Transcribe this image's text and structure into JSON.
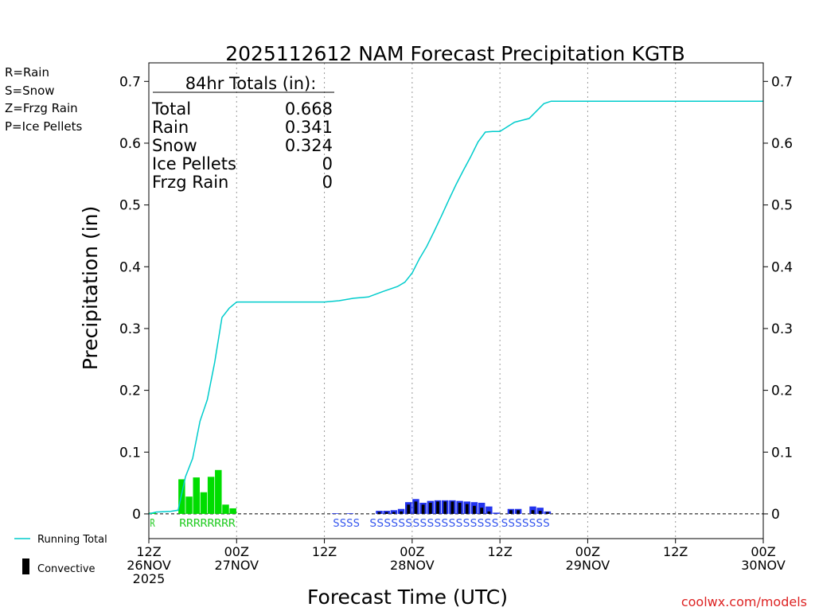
{
  "chart_data": {
    "type": "bar",
    "title": "2025112612 NAM Forecast Precipitation KGTB",
    "xlabel": "Forecast Time (UTC)",
    "ylabel": "Precipitation (in)",
    "ylim": [
      -0.04,
      0.73
    ],
    "xlim_hours": [
      0,
      84
    ],
    "y_ticks": [
      0,
      0.1,
      0.2,
      0.3,
      0.4,
      0.5,
      0.6,
      0.7
    ],
    "x_ticks": [
      {
        "hour": 0,
        "lines": [
          "12Z",
          "26NOV",
          "2025"
        ]
      },
      {
        "hour": 12,
        "lines": [
          "00Z",
          "27NOV"
        ]
      },
      {
        "hour": 24,
        "lines": [
          "12Z"
        ]
      },
      {
        "hour": 36,
        "lines": [
          "00Z",
          "28NOV"
        ]
      },
      {
        "hour": 48,
        "lines": [
          "12Z"
        ]
      },
      {
        "hour": 60,
        "lines": [
          "00Z",
          "29NOV"
        ]
      },
      {
        "hour": 72,
        "lines": [
          "12Z"
        ]
      },
      {
        "hour": 84,
        "lines": [
          "00Z",
          "30NOV"
        ]
      }
    ],
    "totals_box": {
      "header": "84hr Totals (in):",
      "rows": [
        {
          "label": "Total",
          "value": "0.668"
        },
        {
          "label": "Rain",
          "value": "0.341"
        },
        {
          "label": "Snow",
          "value": "0.324"
        },
        {
          "label": "Ice Pellets",
          "value": "0"
        },
        {
          "label": "Frzg Rain",
          "value": "0"
        }
      ]
    },
    "precip_type_legend": [
      {
        "text": "R=Rain",
        "color": "#22cc22"
      },
      {
        "text": "S=Snow",
        "color": "#3355ee"
      },
      {
        "text": "Z=Frzg Rain",
        "color": "#ee8833"
      },
      {
        "text": "P=Ice Pellets",
        "color": "#ee2288"
      }
    ],
    "series_legend": {
      "running_total": "Running Total",
      "convective": "Convective"
    },
    "colors": {
      "rain": "#00dd00",
      "snow": "#2233ee",
      "convective": "#000000",
      "running_total": "#00cccc",
      "rain_label": "#22cc22",
      "snow_label": "#3355ee",
      "credit": "#dd2222"
    },
    "running_total": [
      [
        0,
        0
      ],
      [
        1,
        0.003
      ],
      [
        3,
        0.004
      ],
      [
        4,
        0.006
      ],
      [
        5,
        0.06
      ],
      [
        6,
        0.09
      ],
      [
        7,
        0.15
      ],
      [
        8,
        0.185
      ],
      [
        9,
        0.245
      ],
      [
        10,
        0.318
      ],
      [
        11,
        0.333
      ],
      [
        12,
        0.343
      ],
      [
        13,
        0.343
      ],
      [
        24,
        0.343
      ],
      [
        26,
        0.345
      ],
      [
        28,
        0.349
      ],
      [
        30,
        0.351
      ],
      [
        32,
        0.36
      ],
      [
        34,
        0.368
      ],
      [
        35,
        0.375
      ],
      [
        36,
        0.39
      ],
      [
        37,
        0.413
      ],
      [
        38,
        0.433
      ],
      [
        39,
        0.457
      ],
      [
        40,
        0.482
      ],
      [
        41,
        0.508
      ],
      [
        42,
        0.533
      ],
      [
        43,
        0.556
      ],
      [
        44,
        0.578
      ],
      [
        45,
        0.602
      ],
      [
        46,
        0.618
      ],
      [
        47,
        0.619
      ],
      [
        48,
        0.619
      ],
      [
        50,
        0.634
      ],
      [
        52,
        0.64
      ],
      [
        54,
        0.664
      ],
      [
        55,
        0.668
      ],
      [
        84,
        0.668
      ]
    ],
    "bars": [
      {
        "h": 1,
        "type": "rain",
        "total": 0.002,
        "conv": 0
      },
      {
        "h": 5,
        "type": "rain",
        "total": 0.056,
        "conv": 0
      },
      {
        "h": 6,
        "type": "rain",
        "total": 0.028,
        "conv": 0
      },
      {
        "h": 7,
        "type": "rain",
        "total": 0.059,
        "conv": 0
      },
      {
        "h": 8,
        "type": "rain",
        "total": 0.035,
        "conv": 0
      },
      {
        "h": 9,
        "type": "rain",
        "total": 0.06,
        "conv": 0
      },
      {
        "h": 10,
        "type": "rain",
        "total": 0.071,
        "conv": 0
      },
      {
        "h": 11,
        "type": "rain",
        "total": 0.015,
        "conv": 0
      },
      {
        "h": 12,
        "type": "rain",
        "total": 0.009,
        "conv": 0
      },
      {
        "h": 26,
        "type": "snow",
        "total": 0.001,
        "conv": 0
      },
      {
        "h": 28,
        "type": "snow",
        "total": 0.001,
        "conv": 0
      },
      {
        "h": 32,
        "type": "snow",
        "total": 0.005,
        "conv": 0.003
      },
      {
        "h": 33,
        "type": "snow",
        "total": 0.005,
        "conv": 0.003
      },
      {
        "h": 34,
        "type": "snow",
        "total": 0.006,
        "conv": 0.003
      },
      {
        "h": 35,
        "type": "snow",
        "total": 0.008,
        "conv": 0.004
      },
      {
        "h": 36,
        "type": "snow",
        "total": 0.019,
        "conv": 0.015
      },
      {
        "h": 37,
        "type": "snow",
        "total": 0.024,
        "conv": 0.02
      },
      {
        "h": 38,
        "type": "snow",
        "total": 0.018,
        "conv": 0.015
      },
      {
        "h": 39,
        "type": "snow",
        "total": 0.021,
        "conv": 0.018
      },
      {
        "h": 40,
        "type": "snow",
        "total": 0.022,
        "conv": 0.02
      },
      {
        "h": 41,
        "type": "snow",
        "total": 0.022,
        "conv": 0.02
      },
      {
        "h": 42,
        "type": "snow",
        "total": 0.022,
        "conv": 0.02
      },
      {
        "h": 43,
        "type": "snow",
        "total": 0.021,
        "conv": 0.018
      },
      {
        "h": 44,
        "type": "snow",
        "total": 0.02,
        "conv": 0.016
      },
      {
        "h": 45,
        "type": "snow",
        "total": 0.019,
        "conv": 0.013
      },
      {
        "h": 46,
        "type": "snow",
        "total": 0.018,
        "conv": 0.01
      },
      {
        "h": 47,
        "type": "snow",
        "total": 0.012,
        "conv": 0.004
      },
      {
        "h": 48,
        "type": "snow",
        "total": 0.002,
        "conv": 0
      },
      {
        "h": 50,
        "type": "snow",
        "total": 0.008,
        "conv": 0.006
      },
      {
        "h": 51,
        "type": "snow",
        "total": 0.008,
        "conv": 0.006
      },
      {
        "h": 53,
        "type": "snow",
        "total": 0.012,
        "conv": 0.006
      },
      {
        "h": 54,
        "type": "snow",
        "total": 0.01,
        "conv": 0.005
      },
      {
        "h": 55,
        "type": "snow",
        "total": 0.004,
        "conv": 0.003
      }
    ],
    "type_strip": [
      {
        "start_hour": 1,
        "text": "R",
        "type": "rain"
      },
      {
        "start_hour": 5,
        "text": "RRRRRRRR",
        "type": "rain"
      },
      {
        "start_hour": 26,
        "text": "SSSS",
        "type": "snow"
      },
      {
        "start_hour": 31,
        "text": "SSSSSSSSSSSSSSSSSS",
        "type": "snow"
      },
      {
        "start_hour": 49,
        "text": "SSSSSSS",
        "type": "snow"
      }
    ],
    "credit": "coolwx.com/models"
  }
}
